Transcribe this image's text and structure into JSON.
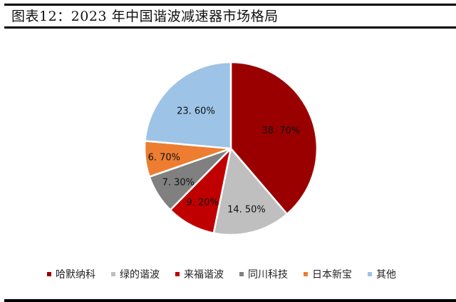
{
  "title": "图表12：2023 年中国谐波减速器市场格局",
  "chart_data": {
    "type": "pie",
    "title": "2023 年中国谐波减速器市场格局",
    "categories": [
      "哈默纳科",
      "绿的谐波",
      "来福谐波",
      "同川科技",
      "日本新宝",
      "其他"
    ],
    "values": [
      38.7,
      14.5,
      9.2,
      7.3,
      6.7,
      23.6
    ],
    "labels": [
      "38. 70%",
      "14. 50%",
      "9. 20%",
      "7. 30%",
      "6. 70%",
      "23. 60%"
    ],
    "colors": [
      "#9a0000",
      "#bfbfbf",
      "#c00000",
      "#808080",
      "#ed7d31",
      "#9dc3e6"
    ],
    "start_angle_deg": 0,
    "direction": "clockwise",
    "legend_position": "bottom"
  },
  "legend": [
    {
      "label": "哈默纳科",
      "color": "#9a0000"
    },
    {
      "label": "绿的谐波",
      "color": "#bfbfbf"
    },
    {
      "label": "来福谐波",
      "color": "#c00000"
    },
    {
      "label": "同川科技",
      "color": "#808080"
    },
    {
      "label": "日本新宝",
      "color": "#ed7d31"
    },
    {
      "label": "其他",
      "color": "#9dc3e6"
    }
  ]
}
